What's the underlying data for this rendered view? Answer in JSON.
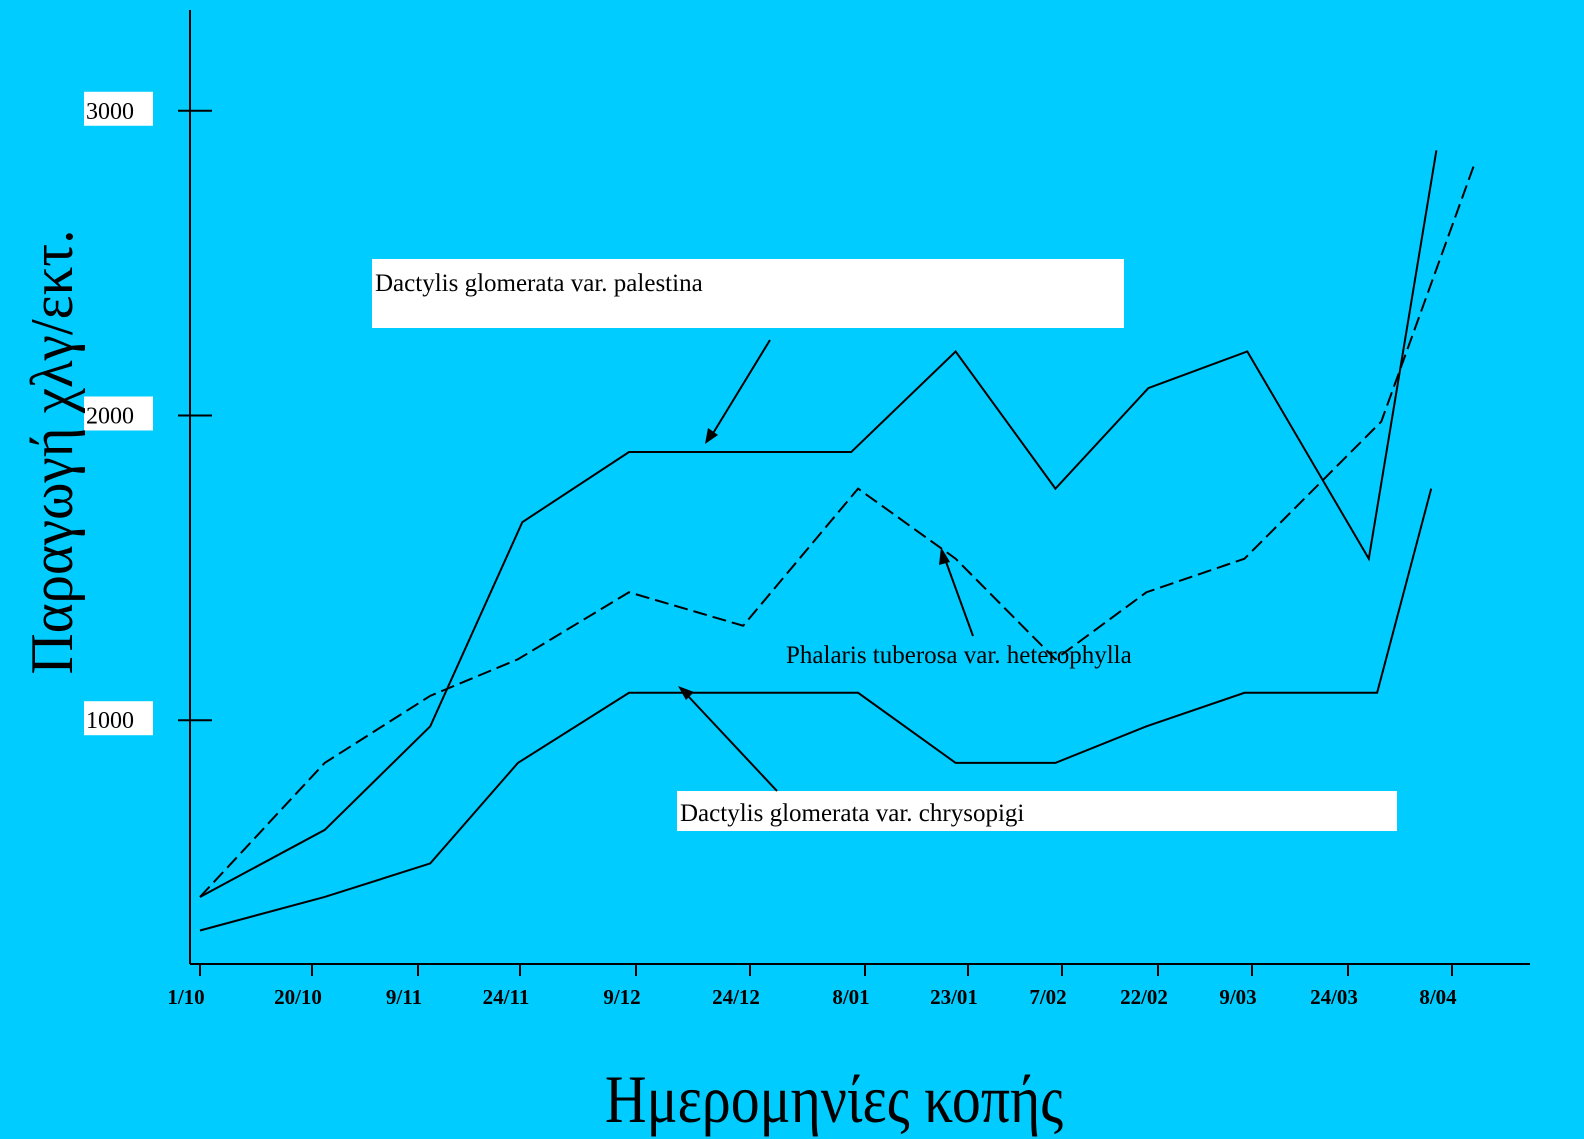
{
  "chart_data": {
    "type": "line",
    "xlabel": "Ημερομηνίες κοπής",
    "ylabel": "Παραγωγή χλγ/εκτ.",
    "x_tick_labels": [
      "1/10",
      "20/10",
      "9/11",
      "24/11",
      "9/12",
      "24/12",
      "8/01",
      "23/01",
      "7/02",
      "22/02",
      "9/03",
      "24/03",
      "8/04"
    ],
    "y_ticks": [
      1000,
      2000,
      3000
    ],
    "y_tick_labels": [
      "1000",
      "2000",
      "3000"
    ],
    "ylim": [
      200,
      3200
    ],
    "grid": false,
    "legend": "none",
    "series": [
      {
        "name": "Dactylis glomerata var. palestina",
        "style": "solid",
        "points": [
          [
            0,
            420
          ],
          [
            1.12,
            640
          ],
          [
            2.12,
            980
          ],
          [
            3.02,
            1650
          ],
          [
            3.94,
            1880
          ],
          [
            5.88,
            1880
          ],
          [
            6.88,
            2210
          ],
          [
            7.93,
            1760
          ],
          [
            8.9,
            2090
          ],
          [
            9.95,
            2210
          ],
          [
            11.2,
            1530
          ],
          [
            11.85,
            2870
          ]
        ]
      },
      {
        "name": "Phalaris tuberosa var. heterophylla",
        "style": "dashed",
        "points": [
          [
            0,
            420
          ],
          [
            1.12,
            860
          ],
          [
            2.12,
            1080
          ],
          [
            2.98,
            1200
          ],
          [
            3.94,
            1420
          ],
          [
            4.94,
            1310
          ],
          [
            5.94,
            1760
          ],
          [
            6.88,
            1530
          ],
          [
            7.93,
            1200
          ],
          [
            8.88,
            1420
          ],
          [
            9.92,
            1530
          ],
          [
            11.32,
            1980
          ],
          [
            12.21,
            2820
          ]
        ]
      },
      {
        "name": "Dactylis glomerata var. chrysopigi",
        "style": "solid",
        "points": [
          [
            0,
            310
          ],
          [
            1.12,
            420
          ],
          [
            2.12,
            530
          ],
          [
            2.98,
            860
          ],
          [
            3.94,
            1090
          ],
          [
            5.94,
            1090
          ],
          [
            6.88,
            860
          ],
          [
            7.93,
            860
          ],
          [
            8.88,
            980
          ],
          [
            9.92,
            1090
          ],
          [
            11.28,
            1090
          ],
          [
            11.8,
            1760
          ]
        ]
      }
    ],
    "annotations": [
      "Dactylis glomerata var. palestina",
      "Phalaris tuberosa var. heterophylla",
      "Dactylis glomerata var. chrysopigi"
    ],
    "colors": {
      "background": "#00CCFF",
      "line": "#000000",
      "label_box": "#FFFFFF"
    }
  }
}
